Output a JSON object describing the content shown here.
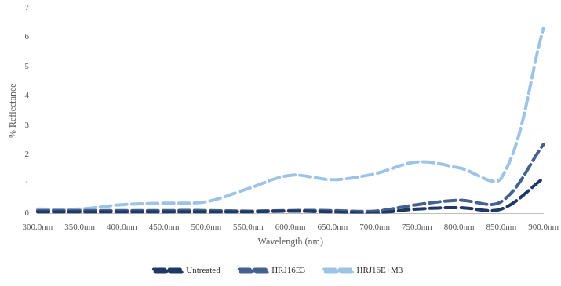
{
  "chart_data": {
    "type": "line",
    "x_label": "Wavelength (nm)",
    "y_label": "% Reflectance",
    "categories": [
      "300.0nm",
      "350.0nm",
      "400.0nm",
      "450.0nm",
      "500.0nm",
      "550.0nm",
      "600.0nm",
      "650.0nm",
      "700.0nm",
      "750.0nm",
      "800.0nm",
      "850.0nm",
      "900.0nm"
    ],
    "series": [
      {
        "name": "Untreated",
        "color": "#1f3864",
        "line_style": "dashed",
        "marker": "none",
        "values": [
          0.05,
          0.05,
          0.05,
          0.05,
          0.05,
          0.05,
          0.08,
          0.05,
          0.02,
          0.15,
          0.2,
          0.15,
          1.2
        ]
      },
      {
        "name": "HRJ16E3",
        "color": "#44618f",
        "line_style": "dashed",
        "marker": "none",
        "values": [
          0.1,
          0.1,
          0.1,
          0.1,
          0.1,
          0.08,
          0.1,
          0.1,
          0.08,
          0.3,
          0.45,
          0.4,
          2.35
        ]
      },
      {
        "name": "HRJ16E+M3",
        "color": "#9dc3e6",
        "line_style": "dashed",
        "marker": "none",
        "values": [
          0.15,
          0.15,
          0.3,
          0.35,
          0.4,
          0.85,
          1.3,
          1.15,
          1.35,
          1.75,
          1.55,
          1.2,
          6.3
        ]
      }
    ],
    "ylim": [
      0,
      7
    ],
    "yticks": [
      0,
      1,
      2,
      3,
      4,
      5,
      6,
      7
    ],
    "grid": false,
    "legend": "bottom"
  }
}
